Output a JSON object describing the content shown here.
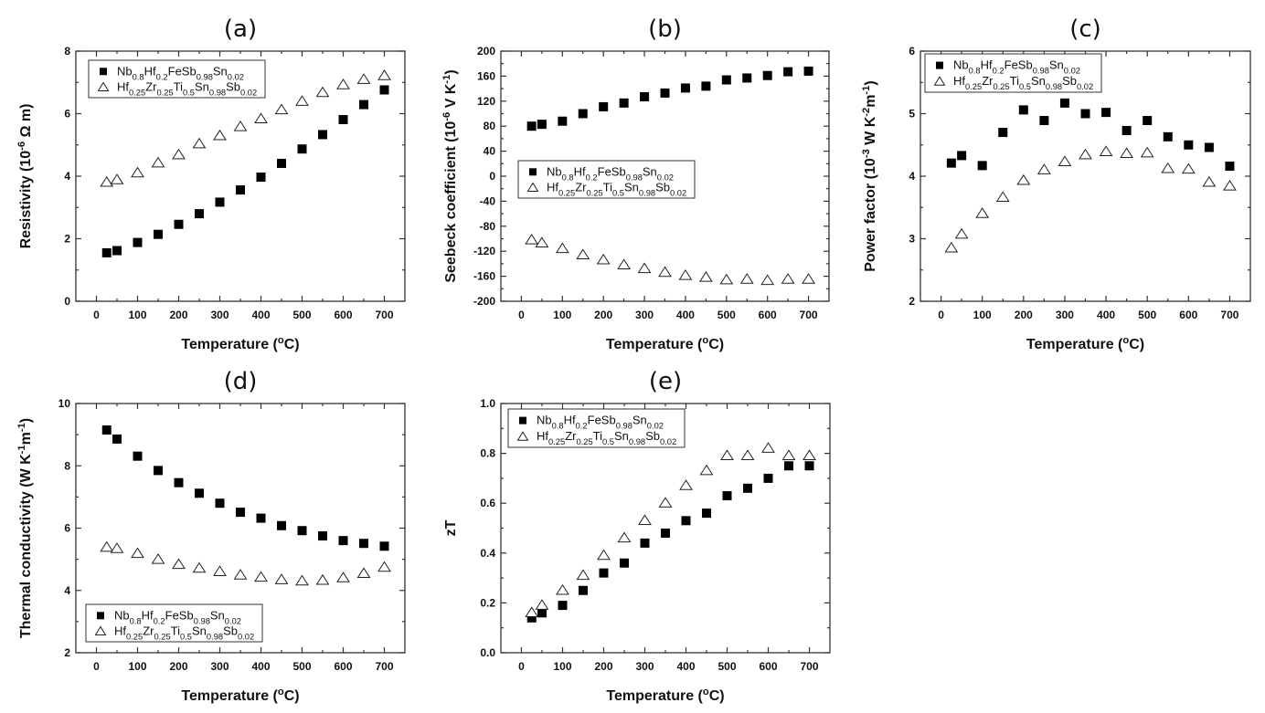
{
  "chart_data": [
    {
      "id": "a",
      "type": "scatter",
      "title": "(a)",
      "xlabel": "Temperature (ºC)",
      "ylabel": "Resistivity (10^-6 Ω m)",
      "ylabel_parts": [
        {
          "t": "Resistivity (10"
        },
        {
          "t": "-6",
          "sup": true
        },
        {
          "t": " Ω m)"
        }
      ],
      "xlim": [
        -50,
        750
      ],
      "ylim": [
        0,
        8
      ],
      "xticks": [
        0,
        100,
        200,
        300,
        400,
        500,
        600,
        700
      ],
      "yticks": [
        0,
        2,
        4,
        6,
        8
      ],
      "yticks_minor": [
        1,
        3,
        5,
        7
      ],
      "xticks_minor": [
        50,
        150,
        250,
        350,
        450,
        550,
        650
      ],
      "ytick_decimals": 0,
      "legend_position": "top-left",
      "x": [
        25,
        50,
        100,
        150,
        200,
        250,
        300,
        350,
        400,
        450,
        500,
        550,
        600,
        650,
        700
      ],
      "series": [
        {
          "name": "Nb0.8Hf0.2FeSb0.98Sn0.02",
          "marker": "filled-square",
          "values": [
            1.55,
            1.62,
            1.88,
            2.14,
            2.46,
            2.8,
            3.17,
            3.56,
            3.97,
            4.41,
            4.87,
            5.33,
            5.81,
            6.29,
            6.76
          ]
        },
        {
          "name": "Hf0.25Zr0.25Ti0.5Sn0.98Sb0.02",
          "marker": "open-triangle",
          "values": [
            3.8,
            3.88,
            4.1,
            4.42,
            4.68,
            5.03,
            5.29,
            5.58,
            5.83,
            6.12,
            6.39,
            6.67,
            6.92,
            7.09,
            7.21
          ]
        }
      ]
    },
    {
      "id": "b",
      "type": "scatter",
      "title": "(b)",
      "xlabel": "Temperature (ºC)",
      "ylabel": "Seebeck coefficient (10^-6 V K^-1)",
      "ylabel_parts": [
        {
          "t": "Seebeck coefficient (10"
        },
        {
          "t": "-6",
          "sup": true
        },
        {
          "t": " V K"
        },
        {
          "t": "-1",
          "sup": true
        },
        {
          "t": ")"
        }
      ],
      "xlim": [
        -50,
        750
      ],
      "ylim": [
        -200,
        200
      ],
      "xticks": [
        0,
        100,
        200,
        300,
        400,
        500,
        600,
        700
      ],
      "yticks": [
        -200,
        -160,
        -120,
        -80,
        -40,
        0,
        40,
        80,
        120,
        160,
        200
      ],
      "yticks_minor": [
        -180,
        -140,
        -100,
        -60,
        -20,
        20,
        60,
        100,
        140,
        180
      ],
      "xticks_minor": [
        50,
        150,
        250,
        350,
        450,
        550,
        650
      ],
      "ytick_decimals": 0,
      "legend_position": "center-left",
      "x": [
        25,
        50,
        100,
        150,
        200,
        250,
        300,
        350,
        400,
        450,
        500,
        550,
        600,
        650,
        700
      ],
      "series": [
        {
          "name": "Nb0.8Hf0.2FeSb0.98Sn0.02",
          "marker": "filled-square",
          "values": [
            80,
            83,
            88,
            100,
            111,
            117,
            127,
            133,
            141,
            144,
            154,
            157,
            161,
            167,
            168
          ]
        },
        {
          "name": "Hf0.25Zr0.25Ti0.5Sn0.98Sb0.02",
          "marker": "open-triangle",
          "values": [
            -102,
            -107,
            -116,
            -126,
            -134,
            -142,
            -148,
            -154,
            -159,
            -162,
            -166,
            -165,
            -167,
            -165,
            -165
          ]
        }
      ]
    },
    {
      "id": "c",
      "type": "scatter",
      "title": "(c)",
      "xlabel": "Temperature (ºC)",
      "ylabel": "Power factor (10^-3 W K^-2m^-1)",
      "ylabel_parts": [
        {
          "t": "Power factor (10"
        },
        {
          "t": "-3",
          "sup": true
        },
        {
          "t": " W K"
        },
        {
          "t": "-2",
          "sup": true
        },
        {
          "t": "m"
        },
        {
          "t": "-1",
          "sup": true
        },
        {
          "t": ")"
        }
      ],
      "xlim": [
        -50,
        750
      ],
      "ylim": [
        2,
        6
      ],
      "xticks": [
        0,
        100,
        200,
        300,
        400,
        500,
        600,
        700
      ],
      "yticks": [
        2,
        3,
        4,
        5,
        6
      ],
      "yticks_minor": [
        2.5,
        3.5,
        4.5,
        5.5
      ],
      "xticks_minor": [
        50,
        150,
        250,
        350,
        450,
        550,
        650
      ],
      "ytick_decimals": 0,
      "legend_position": "top-left",
      "x": [
        25,
        50,
        100,
        150,
        200,
        250,
        300,
        350,
        400,
        450,
        500,
        550,
        600,
        650,
        700
      ],
      "series": [
        {
          "name": "Nb0.8Hf0.2FeSb0.98Sn0.02",
          "marker": "filled-square",
          "values": [
            4.21,
            4.33,
            4.17,
            4.7,
            5.06,
            4.89,
            5.17,
            5.0,
            5.02,
            4.73,
            4.89,
            4.63,
            4.5,
            4.46,
            4.16
          ]
        },
        {
          "name": "Hf0.25Zr0.25Ti0.5Sn0.98Sb0.02",
          "marker": "open-triangle",
          "values": [
            2.85,
            3.07,
            3.4,
            3.66,
            3.93,
            4.1,
            4.23,
            4.34,
            4.39,
            4.36,
            4.37,
            4.12,
            4.11,
            3.9,
            3.84
          ]
        }
      ]
    },
    {
      "id": "d",
      "type": "scatter",
      "title": "(d)",
      "xlabel": "Temperature (ºC)",
      "ylabel": "Thermal conductivity (W K^-1m^-1)",
      "ylabel_parts": [
        {
          "t": "Thermal conductivity (W K"
        },
        {
          "t": "-1",
          "sup": true
        },
        {
          "t": "m"
        },
        {
          "t": "-1",
          "sup": true
        },
        {
          "t": ")"
        }
      ],
      "xlim": [
        -50,
        750
      ],
      "ylim": [
        2,
        10
      ],
      "xticks": [
        0,
        100,
        200,
        300,
        400,
        500,
        600,
        700
      ],
      "yticks": [
        2,
        4,
        6,
        8,
        10
      ],
      "yticks_minor": [
        3,
        5,
        7,
        9
      ],
      "xticks_minor": [
        50,
        150,
        250,
        350,
        450,
        550,
        650
      ],
      "ytick_decimals": 0,
      "legend_position": "bottom-left",
      "x": [
        25,
        50,
        100,
        150,
        200,
        250,
        300,
        350,
        400,
        450,
        500,
        550,
        600,
        650,
        700
      ],
      "series": [
        {
          "name": "Nb0.8Hf0.2FeSb0.98Sn0.02",
          "marker": "filled-square",
          "values": [
            9.15,
            8.86,
            8.31,
            7.85,
            7.46,
            7.12,
            6.8,
            6.51,
            6.32,
            6.08,
            5.92,
            5.75,
            5.6,
            5.51,
            5.42
          ]
        },
        {
          "name": "Hf0.25Zr0.25Ti0.5Sn0.98Sb0.02",
          "marker": "open-triangle",
          "values": [
            5.38,
            5.34,
            5.18,
            4.99,
            4.83,
            4.71,
            4.6,
            4.49,
            4.42,
            4.34,
            4.3,
            4.32,
            4.4,
            4.54,
            4.74
          ]
        }
      ]
    },
    {
      "id": "e",
      "type": "scatter",
      "title": "(e)",
      "xlabel": "Temperature (ºC)",
      "ylabel": "zT",
      "ylabel_parts": [
        {
          "t": "zT"
        }
      ],
      "xlim": [
        -50,
        750
      ],
      "ylim": [
        0,
        1
      ],
      "xticks": [
        0,
        100,
        200,
        300,
        400,
        500,
        600,
        700
      ],
      "yticks": [
        0,
        0.2,
        0.4,
        0.6,
        0.8,
        1.0
      ],
      "yticks_minor": [
        0.1,
        0.3,
        0.5,
        0.7,
        0.9
      ],
      "xticks_minor": [
        50,
        150,
        250,
        350,
        450,
        550,
        650
      ],
      "ytick_decimals": 1,
      "legend_position": "top-left",
      "x": [
        25,
        50,
        100,
        150,
        200,
        250,
        300,
        350,
        400,
        450,
        500,
        550,
        600,
        650,
        700
      ],
      "series": [
        {
          "name": "Nb0.8Hf0.2FeSb0.98Sn0.02",
          "marker": "filled-square",
          "values": [
            0.14,
            0.16,
            0.19,
            0.25,
            0.32,
            0.36,
            0.44,
            0.48,
            0.53,
            0.56,
            0.63,
            0.66,
            0.7,
            0.75,
            0.75
          ]
        },
        {
          "name": "Hf0.25Zr0.25Ti0.5Sn0.98Sb0.02",
          "marker": "open-triangle",
          "values": [
            0.16,
            0.19,
            0.25,
            0.31,
            0.39,
            0.46,
            0.53,
            0.6,
            0.67,
            0.73,
            0.79,
            0.79,
            0.82,
            0.79,
            0.79
          ]
        }
      ]
    }
  ],
  "legend_labels": [
    [
      {
        "t": "Nb"
      },
      {
        "t": "0.8",
        "sub": true
      },
      {
        "t": "Hf"
      },
      {
        "t": "0.2",
        "sub": true
      },
      {
        "t": "FeSb"
      },
      {
        "t": "0.98",
        "sub": true
      },
      {
        "t": "Sn"
      },
      {
        "t": "0.02",
        "sub": true
      }
    ],
    [
      {
        "t": "Hf"
      },
      {
        "t": "0.25",
        "sub": true
      },
      {
        "t": "Zr"
      },
      {
        "t": "0.25",
        "sub": true
      },
      {
        "t": "Ti"
      },
      {
        "t": "0.5",
        "sub": true
      },
      {
        "t": "Sn"
      },
      {
        "t": "0.98",
        "sub": true
      },
      {
        "t": "Sb"
      },
      {
        "t": "0.02",
        "sub": true
      }
    ]
  ],
  "xlabel_parts": [
    {
      "t": "Temperature ("
    },
    {
      "t": "o",
      "sup": true
    },
    {
      "t": "C)"
    }
  ]
}
